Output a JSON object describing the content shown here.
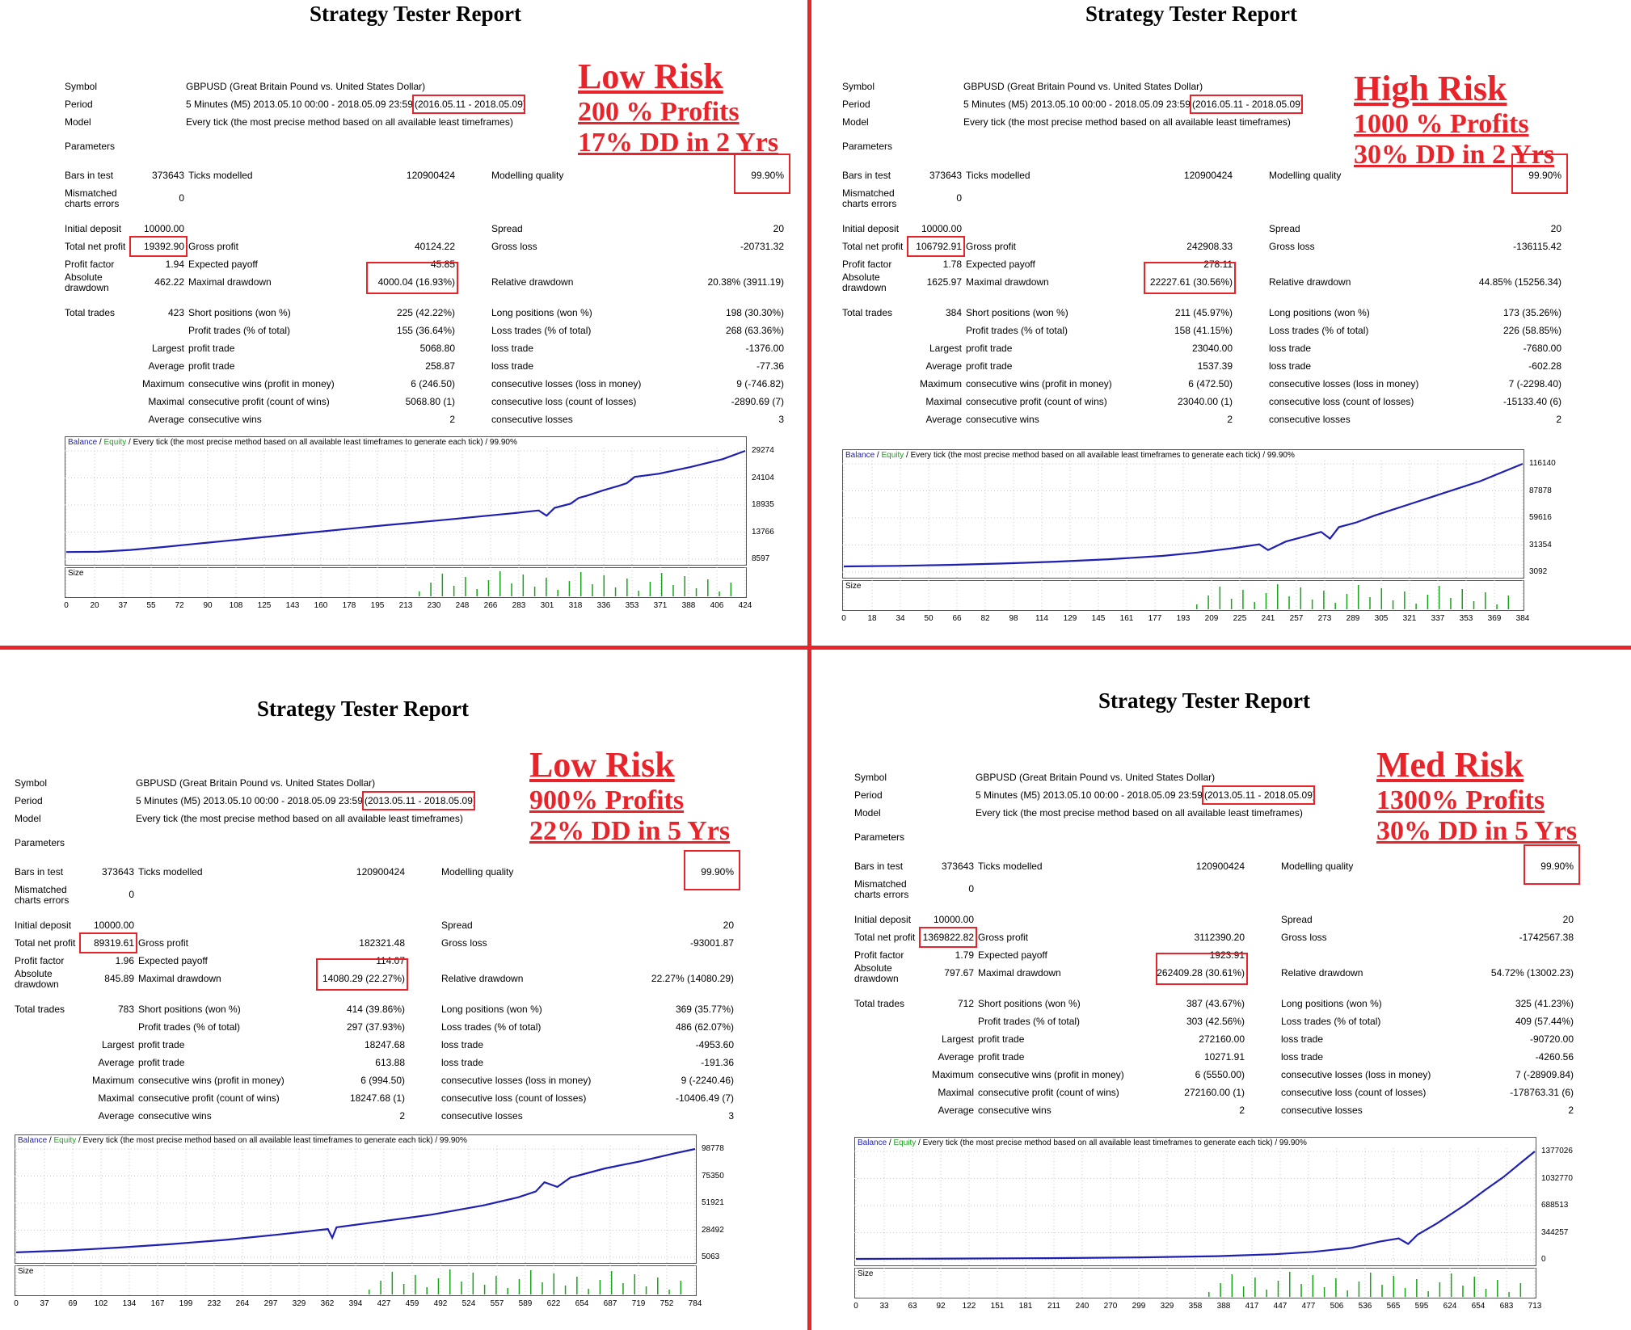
{
  "colors": {
    "accent": "#e8232a",
    "balance": "#1f1fb4",
    "equity": "#17a317",
    "volume": "#17a317"
  },
  "labels": {
    "symbol": "Symbol",
    "period": "Period",
    "model": "Model",
    "parameters": "Parameters",
    "bars_in_test": "Bars in test",
    "ticks_modelled": "Ticks modelled",
    "modelling_quality": "Modelling quality",
    "mismatched_1": "Mismatched",
    "mismatched_2": "charts errors",
    "initial_deposit": "Initial deposit",
    "spread": "Spread",
    "total_net_profit": "Total net profit",
    "gross_profit": "Gross profit",
    "gross_loss": "Gross loss",
    "profit_factor": "Profit factor",
    "expected_payoff": "Expected payoff",
    "absolute_1": "Absolute",
    "absolute_2": "drawdown",
    "maximal_drawdown": "Maximal drawdown",
    "relative_drawdown": "Relative drawdown",
    "total_trades": "Total trades",
    "short_positions": "Short positions (won %)",
    "long_positions": "Long positions (won %)",
    "profit_trades": "Profit trades (% of total)",
    "loss_trades": "Loss trades (% of total)",
    "largest": "Largest",
    "average": "Average",
    "maximum": "Maximum",
    "maximal": "Maximal",
    "profit_trade": "profit trade",
    "loss_trade": "loss trade",
    "consecutive_wins_money": "consecutive wins (profit in money)",
    "consecutive_losses_money": "consecutive losses (loss in money)",
    "consecutive_profit_count": "consecutive profit (count of wins)",
    "consecutive_loss_count": "consecutive loss (count of losses)",
    "consecutive_wins": "consecutive wins",
    "consecutive_losses": "consecutive losses",
    "legend_balance": "Balance",
    "legend_sep": " / ",
    "legend_equity": "Equity",
    "legend_rest": " / Every tick (the most precise method based on all available least timeframes to generate each tick) / 99.90%",
    "size": "Size"
  },
  "reports": [
    {
      "title": "Strategy Tester Report",
      "risk": [
        "Low Risk",
        "200 % Profits",
        "17% DD in 2 Yrs"
      ],
      "symbol": "GBPUSD (Great Britain Pound vs. United States Dollar)",
      "period_main": "5 Minutes (M5) 2013.05.10 00:00 - 2018.05.09 23:59",
      "period_range": "(2016.05.11 - 2018.05.09)",
      "model": "Every tick (the most precise method based on all available least timeframes)",
      "bars": "373643",
      "ticks": "120900424",
      "quality": "99.90%",
      "mismatched": "0",
      "initial_deposit": "10000.00",
      "spread": "20",
      "net_profit": "19392.90",
      "gross_profit": "40124.22",
      "gross_loss": "-20731.32",
      "profit_factor": "1.94",
      "expected_payoff": "45.85",
      "abs_dd": "462.22",
      "max_dd": "4000.04 (16.93%)",
      "rel_dd": "20.38% (3911.19)",
      "total_trades": "423",
      "short": "225 (42.22%)",
      "long": "198 (30.30%)",
      "profit_trades": "155 (36.64%)",
      "loss_trades": "268 (63.36%)",
      "largest_profit": "5068.80",
      "largest_loss": "-1376.00",
      "avg_profit": "258.87",
      "avg_loss": "-77.36",
      "max_cons_wins": "6 (246.50)",
      "max_cons_losses": "9 (-746.82)",
      "maximal_cons_profit": "5068.80 (1)",
      "maximal_cons_loss": "-2890.69 (7)",
      "avg_cons_wins": "2",
      "avg_cons_losses": "3",
      "chart_data": {
        "type": "line",
        "x_ticks": [
          "0",
          "20",
          "37",
          "55",
          "72",
          "90",
          "108",
          "125",
          "143",
          "160",
          "178",
          "195",
          "213",
          "230",
          "248",
          "266",
          "283",
          "301",
          "318",
          "336",
          "353",
          "371",
          "388",
          "406",
          "424"
        ],
        "y_ticks": [
          "29274",
          "24104",
          "18935",
          "13766",
          "8597"
        ],
        "ylim": [
          8597,
          29274
        ],
        "xlim": [
          0,
          424
        ],
        "series": [
          {
            "name": "Balance",
            "x": [
              0,
              20,
              40,
              60,
              80,
              100,
              120,
              140,
              160,
              180,
              200,
              220,
              240,
              260,
              280,
              295,
              300,
              305,
              315,
              320,
              325,
              335,
              345,
              350,
              355,
              370,
              390,
              410,
              424
            ],
            "y": [
              9950,
              10000,
              10350,
              10900,
              11500,
              12100,
              12700,
              13300,
              13900,
              14500,
              15100,
              15650,
              16200,
              16800,
              17400,
              17900,
              16900,
              18400,
              19200,
              20300,
              20700,
              21700,
              22600,
              23100,
              24300,
              24900,
              26200,
              27700,
              29274
            ]
          }
        ]
      }
    },
    {
      "title": "Strategy Tester Report",
      "risk": [
        "High Risk",
        "1000 % Profits",
        "30% DD in 2 Yrs"
      ],
      "symbol": "GBPUSD (Great Britain Pound vs. United States Dollar)",
      "period_main": "5 Minutes (M5) 2013.05.10 00:00 - 2018.05.09 23:59",
      "period_range": "(2016.05.11 - 2018.05.09)",
      "model": "Every tick (the most precise method based on all available least timeframes)",
      "bars": "373643",
      "ticks": "120900424",
      "quality": "99.90%",
      "mismatched": "0",
      "initial_deposit": "10000.00",
      "spread": "20",
      "net_profit": "106792.91",
      "gross_profit": "242908.33",
      "gross_loss": "-136115.42",
      "profit_factor": "1.78",
      "expected_payoff": "278.11",
      "abs_dd": "1625.97",
      "max_dd": "22227.61 (30.56%)",
      "rel_dd": "44.85% (15256.34)",
      "total_trades": "384",
      "short": "211 (45.97%)",
      "long": "173 (35.26%)",
      "profit_trades": "158 (41.15%)",
      "loss_trades": "226 (58.85%)",
      "largest_profit": "23040.00",
      "largest_loss": "-7680.00",
      "avg_profit": "1537.39",
      "avg_loss": "-602.28",
      "max_cons_wins": "6 (472.50)",
      "max_cons_losses": "7 (-2298.40)",
      "maximal_cons_profit": "23040.00 (1)",
      "maximal_cons_loss": "-15133.40 (6)",
      "avg_cons_wins": "2",
      "avg_cons_losses": "2",
      "chart_data": {
        "type": "line",
        "x_ticks": [
          "0",
          "18",
          "34",
          "50",
          "66",
          "82",
          "98",
          "114",
          "129",
          "145",
          "161",
          "177",
          "193",
          "209",
          "225",
          "241",
          "257",
          "273",
          "289",
          "305",
          "321",
          "337",
          "353",
          "369",
          "384"
        ],
        "y_ticks": [
          "116140",
          "87878",
          "59616",
          "31354",
          "3092"
        ],
        "ylim": [
          3092,
          116140
        ],
        "xlim": [
          0,
          384
        ],
        "series": [
          {
            "name": "Balance",
            "x": [
              0,
              30,
              60,
              90,
              120,
              150,
              180,
              200,
              220,
              235,
              240,
              250,
              260,
              270,
              275,
              280,
              290,
              300,
              310,
              320,
              340,
              360,
              384
            ],
            "y": [
              9000,
              9600,
              10600,
              12000,
              14000,
              16500,
              20000,
              23500,
              28000,
              32000,
              26000,
              35000,
              40000,
              45000,
              38000,
              50000,
              55000,
              62000,
              68000,
              74000,
              86000,
              98000,
              116140
            ]
          }
        ]
      }
    },
    {
      "title": "Strategy Tester Report",
      "risk": [
        "Low Risk",
        "900% Profits",
        "22% DD in 5 Yrs"
      ],
      "symbol": "GBPUSD (Great Britain Pound vs. United States Dollar)",
      "period_main": "5 Minutes (M5) 2013.05.10 00:00 - 2018.05.09 23:59",
      "period_range": "(2013.05.11 - 2018.05.09)",
      "model": "Every tick (the most precise method based on all available least timeframes)",
      "bars": "373643",
      "ticks": "120900424",
      "quality": "99.90%",
      "mismatched": "0",
      "initial_deposit": "10000.00",
      "spread": "20",
      "net_profit": "89319.61",
      "gross_profit": "182321.48",
      "gross_loss": "-93001.87",
      "profit_factor": "1.96",
      "expected_payoff": "114.07",
      "abs_dd": "845.89",
      "max_dd": "14080.29 (22.27%)",
      "rel_dd": "22.27% (14080.29)",
      "total_trades": "783",
      "short": "414 (39.86%)",
      "long": "369 (35.77%)",
      "profit_trades": "297 (37.93%)",
      "loss_trades": "486 (62.07%)",
      "largest_profit": "18247.68",
      "largest_loss": "-4953.60",
      "avg_profit": "613.88",
      "avg_loss": "-191.36",
      "max_cons_wins": "6 (994.50)",
      "max_cons_losses": "9 (-2240.46)",
      "maximal_cons_profit": "18247.68 (1)",
      "maximal_cons_loss": "-10406.49 (7)",
      "avg_cons_wins": "2",
      "avg_cons_losses": "3",
      "chart_data": {
        "type": "line",
        "x_ticks": [
          "0",
          "37",
          "69",
          "102",
          "134",
          "167",
          "199",
          "232",
          "264",
          "297",
          "329",
          "362",
          "394",
          "427",
          "459",
          "492",
          "524",
          "557",
          "589",
          "622",
          "654",
          "687",
          "719",
          "752",
          "784"
        ],
        "y_ticks": [
          "98778",
          "75350",
          "51921",
          "28492",
          "5063"
        ],
        "ylim": [
          5063,
          98778
        ],
        "xlim": [
          0,
          784
        ],
        "series": [
          {
            "name": "Balance",
            "x": [
              0,
              60,
              120,
              180,
              240,
              300,
              360,
              365,
              370,
              420,
              480,
              540,
              580,
              600,
              610,
              625,
              640,
              680,
              720,
              760,
              784
            ],
            "y": [
              9300,
              11000,
              13500,
              16500,
              20000,
              24500,
              29500,
              22000,
              31000,
              36000,
              42000,
              50000,
              57000,
              62000,
              70000,
              66000,
              74000,
              82000,
              88000,
              95000,
              98778
            ]
          }
        ]
      }
    },
    {
      "title": "Strategy Tester Report",
      "risk": [
        "Med Risk",
        "1300% Profits",
        "30% DD in 5 Yrs"
      ],
      "symbol": "GBPUSD (Great Britain Pound vs. United States Dollar)",
      "period_main": "5 Minutes (M5) 2013.05.10 00:00 - 2018.05.09 23:59",
      "period_range": "(2013.05.11 - 2018.05.09)",
      "model": "Every tick (the most precise method based on all available least timeframes)",
      "bars": "373643",
      "ticks": "120900424",
      "quality": "99.90%",
      "mismatched": "0",
      "initial_deposit": "10000.00",
      "spread": "20",
      "net_profit": "1369822.82",
      "gross_profit": "3112390.20",
      "gross_loss": "-1742567.38",
      "profit_factor": "1.79",
      "expected_payoff": "1923.91",
      "abs_dd": "797.67",
      "max_dd": "262409.28 (30.61%)",
      "rel_dd": "54.72% (13002.23)",
      "total_trades": "712",
      "short": "387 (43.67%)",
      "long": "325 (41.23%)",
      "profit_trades": "303 (42.56%)",
      "loss_trades": "409 (57.44%)",
      "largest_profit": "272160.00",
      "largest_loss": "-90720.00",
      "avg_profit": "10271.91",
      "avg_loss": "-4260.56",
      "max_cons_wins": "6 (5550.00)",
      "max_cons_losses": "7 (-28909.84)",
      "maximal_cons_profit": "272160.00 (1)",
      "maximal_cons_loss": "-178763.31 (6)",
      "avg_cons_wins": "2",
      "avg_cons_losses": "2",
      "chart_data": {
        "type": "line",
        "x_ticks": [
          "0",
          "33",
          "63",
          "92",
          "122",
          "151",
          "181",
          "211",
          "240",
          "270",
          "299",
          "329",
          "358",
          "388",
          "417",
          "447",
          "477",
          "506",
          "536",
          "565",
          "595",
          "624",
          "654",
          "683",
          "713"
        ],
        "y_ticks": [
          "1377026",
          "1032770",
          "688513",
          "344257",
          "0"
        ],
        "ylim": [
          0,
          1377026
        ],
        "xlim": [
          0,
          713
        ],
        "series": [
          {
            "name": "Balance",
            "x": [
              0,
              100,
              200,
              300,
              380,
              440,
              480,
              520,
              550,
              570,
              580,
              590,
              610,
              620,
              640,
              660,
              680,
              700,
              713
            ],
            "y": [
              10000,
              14000,
              20000,
              30000,
              45000,
              70000,
              100000,
              150000,
              230000,
              270000,
              200000,
              320000,
              460000,
              540000,
              700000,
              880000,
              1050000,
              1250000,
              1377026
            ]
          }
        ]
      }
    }
  ]
}
